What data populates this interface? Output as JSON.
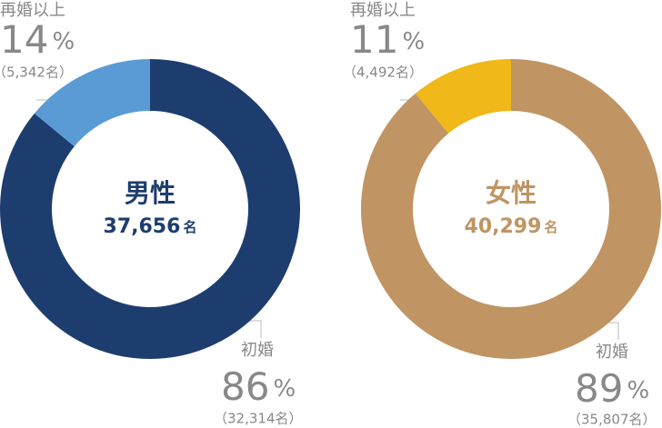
{
  "chart_data": [
    {
      "type": "pie",
      "donut": true,
      "center_label": "男性",
      "total": "37,656",
      "total_unit": "名",
      "center_color": "#1d3d6e",
      "categories": [
        "初婚",
        "再婚以上"
      ],
      "values": [
        86,
        14
      ],
      "value_unit": "%",
      "count_labels": [
        "（32,314名）",
        "（5,342名）"
      ],
      "colors": [
        "#1d3d6e",
        "#5b9bd5"
      ]
    },
    {
      "type": "pie",
      "donut": true,
      "center_label": "女性",
      "total": "40,299",
      "total_unit": "名",
      "center_color": "#c09463",
      "categories": [
        "初婚",
        "再婚以上"
      ],
      "values": [
        89,
        11
      ],
      "value_unit": "%",
      "count_labels": [
        "（35,807名）",
        "（4,492名）"
      ],
      "colors": [
        "#c09463",
        "#f0b818"
      ]
    }
  ]
}
